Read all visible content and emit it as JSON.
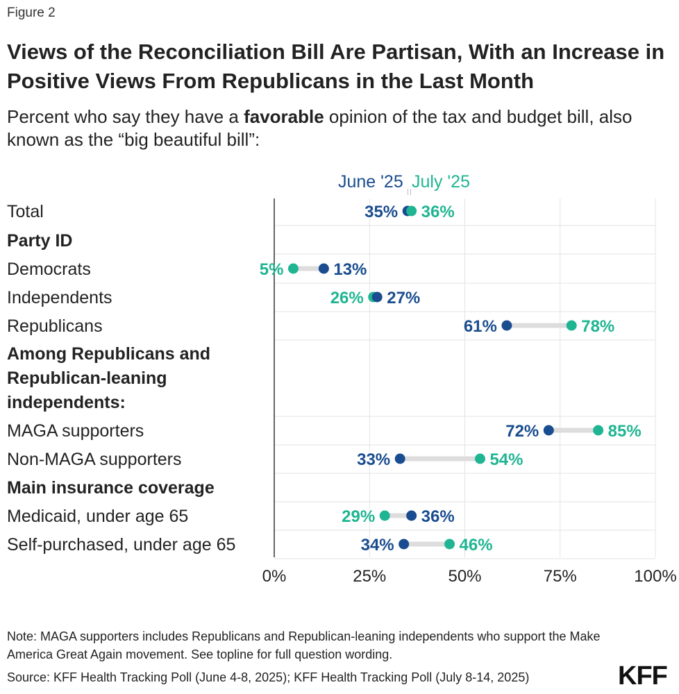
{
  "figure_label": "Figure 2",
  "title": "Views of the Reconciliation Bill Are Partisan, With an Increase in Positive Views From Republicans in the Last Month",
  "subtitle": {
    "prefix": "Percent who say they have a ",
    "bold": "favorable",
    "suffix": " opinion of the tax and budget bill, also known as the “big beautiful bill”:"
  },
  "note": "Note: MAGA supporters includes Republicans and Republican-leaning independents who support the Make America Great Again movement. See topline for full question wording.",
  "source": "Source: KFF Health Tracking Poll (June 4-8, 2025); KFF Health Tracking Poll (July 8-14, 2025)",
  "logo": "KFF",
  "colors": {
    "june": "#1a4d8f",
    "july": "#1fb592",
    "connector": "#dddddd",
    "grid": "#e3e3e3",
    "axis": "#333333"
  },
  "chart_data": {
    "type": "dot",
    "series": [
      {
        "name": "June '25",
        "color": "#1a4d8f"
      },
      {
        "name": "July '25",
        "color": "#1fb592"
      }
    ],
    "x_ticks": [
      "0%",
      "25%",
      "50%",
      "75%",
      "100%"
    ],
    "xlim": [
      0,
      100
    ],
    "rows": [
      {
        "label": "Total",
        "type": "data",
        "june": 35,
        "july": 36,
        "june_label": "35%",
        "july_label": "36%"
      },
      {
        "label": "Party ID",
        "type": "header",
        "lines": [
          "Party ID"
        ]
      },
      {
        "label": "Democrats",
        "type": "data",
        "june": 13,
        "july": 5,
        "june_label": "13%",
        "july_label": "5%"
      },
      {
        "label": "Independents",
        "type": "data",
        "june": 27,
        "july": 26,
        "june_label": "27%",
        "july_label": "26%"
      },
      {
        "label": "Republicans",
        "type": "data",
        "june": 61,
        "july": 78,
        "june_label": "61%",
        "july_label": "78%"
      },
      {
        "label": "Among Republicans and Republican-leaning independents:",
        "type": "header",
        "lines": [
          "Among Republicans and",
          "Republican-leaning",
          "independents:"
        ]
      },
      {
        "label": "MAGA supporters",
        "type": "data",
        "june": 72,
        "july": 85,
        "june_label": "72%",
        "july_label": "85%"
      },
      {
        "label": "Non-MAGA supporters",
        "type": "data",
        "june": 33,
        "july": 54,
        "june_label": "33%",
        "july_label": "54%"
      },
      {
        "label": "Main insurance coverage",
        "type": "header",
        "lines": [
          "Main insurance coverage"
        ]
      },
      {
        "label": "Medicaid, under age 65",
        "type": "data",
        "june": 36,
        "july": 29,
        "june_label": "36%",
        "july_label": "29%"
      },
      {
        "label": "Self-purchased, under age 65",
        "type": "data",
        "june": 34,
        "july": 46,
        "june_label": "34%",
        "july_label": "46%"
      }
    ]
  }
}
